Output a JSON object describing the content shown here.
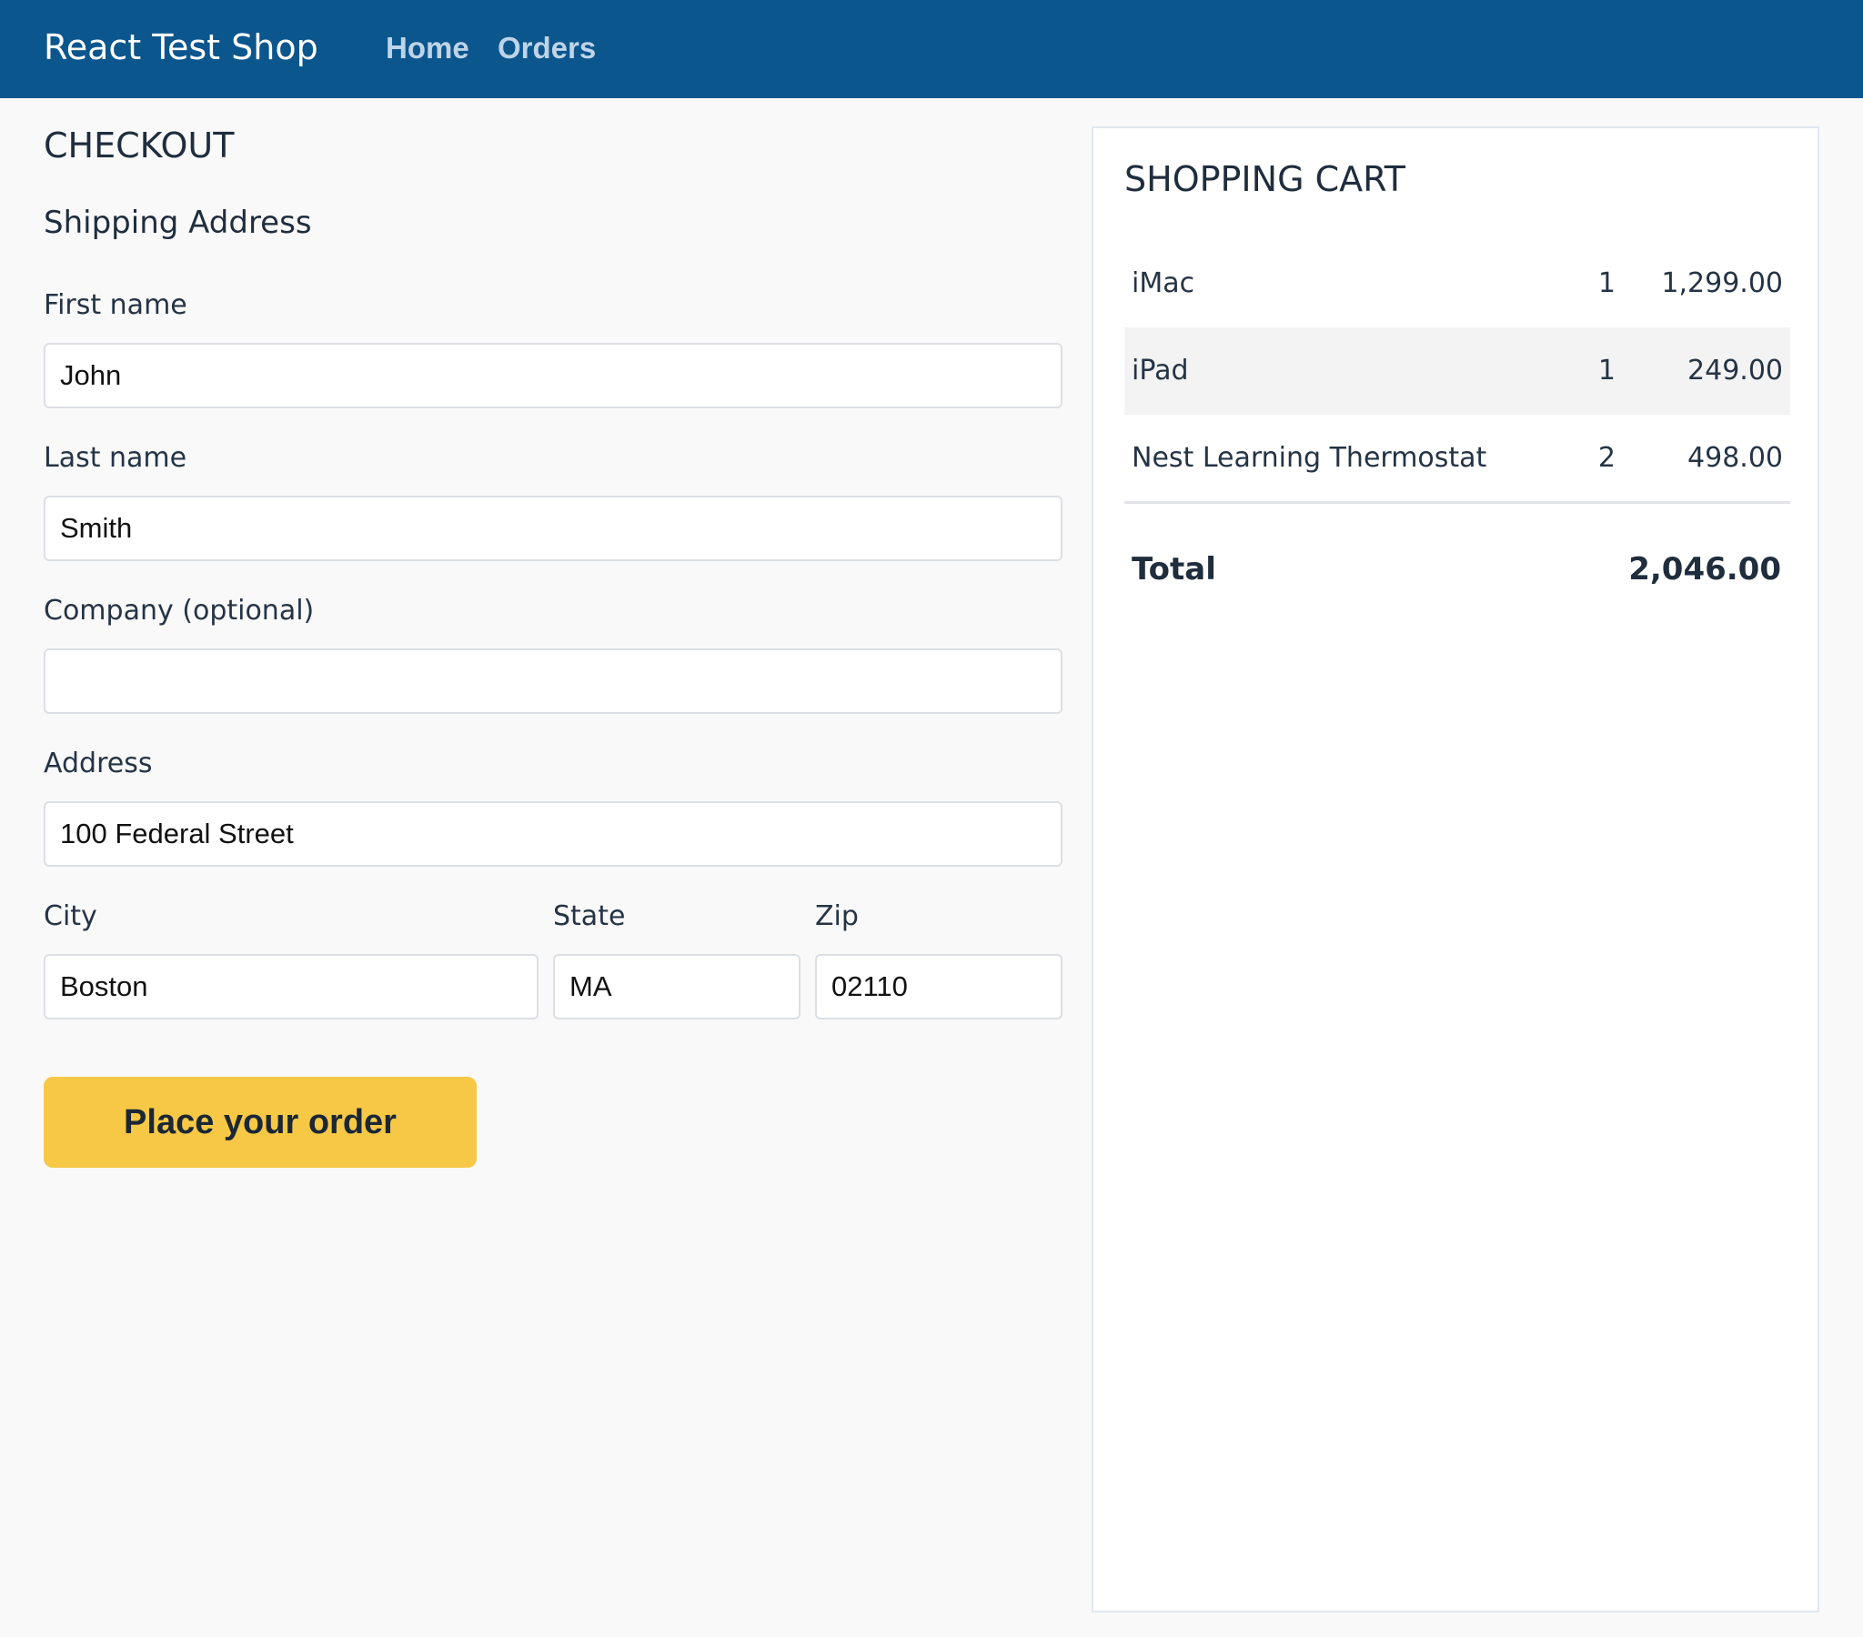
{
  "header": {
    "brand": "React Test Shop",
    "nav": [
      {
        "label": "Home"
      },
      {
        "label": "Orders"
      }
    ],
    "background_color": "#0B568D"
  },
  "checkout": {
    "title": "CHECKOUT",
    "section_title": "Shipping Address",
    "fields": {
      "first_name": {
        "label": "First name",
        "value": "John"
      },
      "last_name": {
        "label": "Last name",
        "value": "Smith"
      },
      "company": {
        "label": "Company (optional)",
        "value": ""
      },
      "address": {
        "label": "Address",
        "value": "100 Federal Street"
      },
      "city": {
        "label": "City",
        "value": "Boston"
      },
      "state": {
        "label": "State",
        "value": "MA"
      },
      "zip": {
        "label": "Zip",
        "value": "02110"
      }
    },
    "submit_label": "Place your order",
    "submit_color": "#F6C846"
  },
  "cart": {
    "title": "SHOPPING CART",
    "items": [
      {
        "name": "iMac",
        "qty": "1",
        "price": "1,299.00"
      },
      {
        "name": "iPad",
        "qty": "1",
        "price": "249.00"
      },
      {
        "name": "Nest Learning Thermostat",
        "qty": "2",
        "price": "498.00"
      }
    ],
    "total_label": "Total",
    "total_value": "2,046.00"
  }
}
